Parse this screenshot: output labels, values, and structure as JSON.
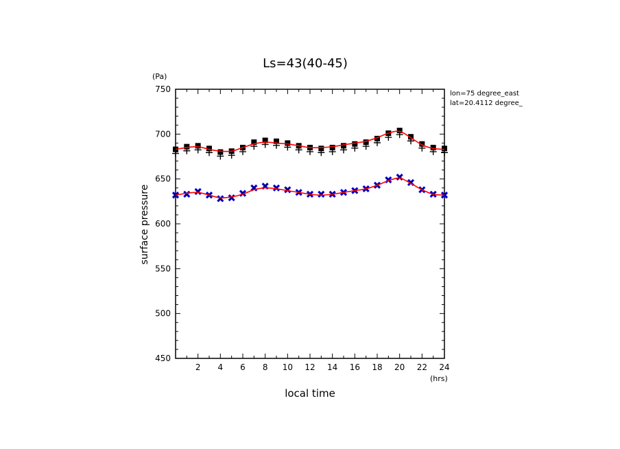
{
  "chart_data": {
    "type": "line",
    "title": "Ls=43(40-45)",
    "xlabel": "local time",
    "ylabel": "surface pressure",
    "x_unit": "(hrs)",
    "y_unit": "(Pa)",
    "annotations": [
      "lon=75 degree_east",
      "lat=20.4112 degree_"
    ],
    "xlim": [
      0,
      24
    ],
    "ylim": [
      450,
      750
    ],
    "x_ticks": [
      2,
      4,
      6,
      8,
      10,
      12,
      14,
      16,
      18,
      20,
      22,
      24
    ],
    "y_ticks": [
      450,
      500,
      550,
      600,
      650,
      700,
      750
    ],
    "grid": false,
    "colors": {
      "fit": "#ff0000",
      "upper_markers": "#000000",
      "lower_markers": "#0000ff",
      "lower_cross": "#000000"
    },
    "x": [
      0,
      1,
      2,
      3,
      4,
      5,
      6,
      7,
      8,
      9,
      10,
      11,
      12,
      13,
      14,
      15,
      16,
      17,
      18,
      19,
      20,
      21,
      22,
      23,
      24
    ],
    "series": [
      {
        "marker": "filled-square-plus",
        "values": [
          683,
          686,
          687,
          684,
          680,
          681,
          685,
          691,
          693,
          692,
          690,
          687,
          685,
          684,
          685,
          687,
          689,
          691,
          695,
          701,
          704,
          697,
          689,
          685,
          684
        ],
        "fit": [
          683,
          685,
          686,
          683,
          681,
          681,
          685,
          689,
          691,
          690,
          689,
          687,
          685,
          685,
          686,
          688,
          690,
          692,
          696,
          701,
          703,
          696,
          688,
          684,
          683
        ]
      },
      {
        "marker": "blue-cross",
        "values": [
          632,
          633,
          636,
          632,
          628,
          629,
          634,
          640,
          642,
          640,
          638,
          635,
          633,
          633,
          633,
          635,
          637,
          639,
          643,
          649,
          652,
          646,
          638,
          633,
          632
        ],
        "fit": [
          632,
          634,
          635,
          632,
          629,
          630,
          633,
          638,
          640,
          639,
          637,
          635,
          633,
          632,
          633,
          635,
          637,
          639,
          643,
          648,
          651,
          645,
          638,
          633,
          632
        ]
      }
    ]
  }
}
